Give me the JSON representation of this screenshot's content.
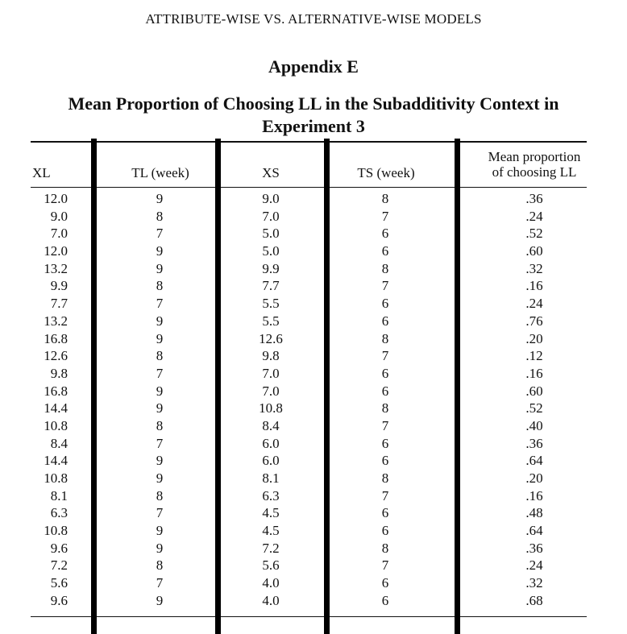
{
  "running_head": "ATTRIBUTE-WISE VS. ALTERNATIVE-WISE MODELS",
  "appendix_label": "Appendix E",
  "table_title_line1": "Mean Proportion of Choosing LL in the Subadditivity Context in",
  "table_title_line2": "Experiment 3",
  "columns": {
    "xl": "XL",
    "tl": "TL (week)",
    "xs": "XS",
    "ts": "TS (week)",
    "mp_line1": "Mean proportion",
    "mp_line2": "of choosing LL"
  },
  "rows": [
    {
      "xl": "12.0",
      "tl": "9",
      "xs": "9.0",
      "ts": "8",
      "mp": ".36"
    },
    {
      "xl": "9.0",
      "tl": "8",
      "xs": "7.0",
      "ts": "7",
      "mp": ".24"
    },
    {
      "xl": "7.0",
      "tl": "7",
      "xs": "5.0",
      "ts": "6",
      "mp": ".52"
    },
    {
      "xl": "12.0",
      "tl": "9",
      "xs": "5.0",
      "ts": "6",
      "mp": ".60"
    },
    {
      "xl": "13.2",
      "tl": "9",
      "xs": "9.9",
      "ts": "8",
      "mp": ".32"
    },
    {
      "xl": "9.9",
      "tl": "8",
      "xs": "7.7",
      "ts": "7",
      "mp": ".16"
    },
    {
      "xl": "7.7",
      "tl": "7",
      "xs": "5.5",
      "ts": "6",
      "mp": ".24"
    },
    {
      "xl": "13.2",
      "tl": "9",
      "xs": "5.5",
      "ts": "6",
      "mp": ".76"
    },
    {
      "xl": "16.8",
      "tl": "9",
      "xs": "12.6",
      "ts": "8",
      "mp": ".20"
    },
    {
      "xl": "12.6",
      "tl": "8",
      "xs": "9.8",
      "ts": "7",
      "mp": ".12"
    },
    {
      "xl": "9.8",
      "tl": "7",
      "xs": "7.0",
      "ts": "6",
      "mp": ".16"
    },
    {
      "xl": "16.8",
      "tl": "9",
      "xs": "7.0",
      "ts": "6",
      "mp": ".60"
    },
    {
      "xl": "14.4",
      "tl": "9",
      "xs": "10.8",
      "ts": "8",
      "mp": ".52"
    },
    {
      "xl": "10.8",
      "tl": "8",
      "xs": "8.4",
      "ts": "7",
      "mp": ".40"
    },
    {
      "xl": "8.4",
      "tl": "7",
      "xs": "6.0",
      "ts": "6",
      "mp": ".36"
    },
    {
      "xl": "14.4",
      "tl": "9",
      "xs": "6.0",
      "ts": "6",
      "mp": ".64"
    },
    {
      "xl": "10.8",
      "tl": "9",
      "xs": "8.1",
      "ts": "8",
      "mp": ".20"
    },
    {
      "xl": "8.1",
      "tl": "8",
      "xs": "6.3",
      "ts": "7",
      "mp": ".16"
    },
    {
      "xl": "6.3",
      "tl": "7",
      "xs": "4.5",
      "ts": "6",
      "mp": ".48"
    },
    {
      "xl": "10.8",
      "tl": "9",
      "xs": "4.5",
      "ts": "6",
      "mp": ".64"
    },
    {
      "xl": "9.6",
      "tl": "9",
      "xs": "7.2",
      "ts": "8",
      "mp": ".36"
    },
    {
      "xl": "7.2",
      "tl": "8",
      "xs": "5.6",
      "ts": "7",
      "mp": ".24"
    },
    {
      "xl": "5.6",
      "tl": "7",
      "xs": "4.0",
      "ts": "6",
      "mp": ".32"
    },
    {
      "xl": "9.6",
      "tl": "9",
      "xs": "4.0",
      "ts": "6",
      "mp": ".68"
    }
  ]
}
